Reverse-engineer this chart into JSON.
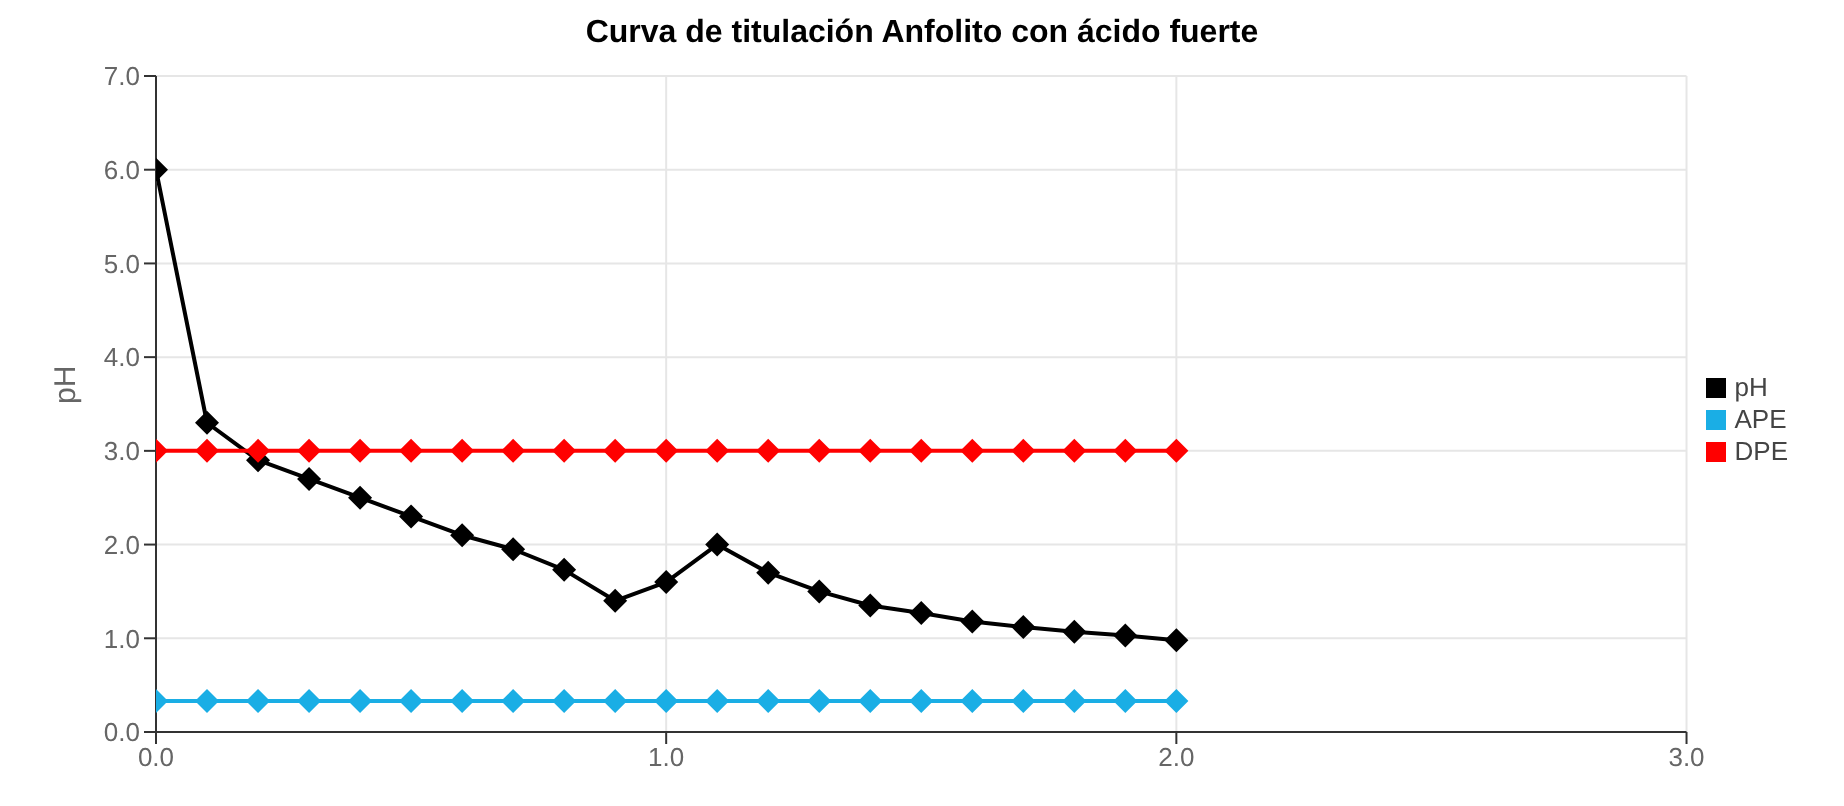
{
  "chart_data": {
    "type": "line",
    "title": "Curva de titulación Anfolito con ácido fuerte",
    "ylabel": "pH",
    "x": [
      0,
      0.1,
      0.2,
      0.3,
      0.4,
      0.5,
      0.6,
      0.7,
      0.8,
      0.9,
      1.0,
      1.1,
      1.2,
      1.3,
      1.4,
      1.5,
      1.6,
      1.7,
      1.8,
      1.9,
      2.0
    ],
    "series": [
      {
        "name": "pH",
        "color": "#000000",
        "values": [
          6.0,
          3.3,
          2.9,
          2.7,
          2.5,
          2.3,
          2.1,
          1.95,
          1.73,
          1.4,
          1.6,
          2.0,
          1.7,
          1.5,
          1.35,
          1.27,
          1.18,
          1.12,
          1.07,
          1.03,
          0.98
        ]
      },
      {
        "name": "APE",
        "color": "#1aaee5",
        "values": [
          0.33,
          0.33,
          0.33,
          0.33,
          0.33,
          0.33,
          0.33,
          0.33,
          0.33,
          0.33,
          0.33,
          0.33,
          0.33,
          0.33,
          0.33,
          0.33,
          0.33,
          0.33,
          0.33,
          0.33,
          0.33
        ]
      },
      {
        "name": "DPE",
        "color": "#ff0000",
        "values": [
          3.0,
          3.0,
          3.0,
          3.0,
          3.0,
          3.0,
          3.0,
          3.0,
          3.0,
          3.0,
          3.0,
          3.0,
          3.0,
          3.0,
          3.0,
          3.0,
          3.0,
          3.0,
          3.0,
          3.0,
          3.0
        ]
      }
    ],
    "xlim": [
      0,
      3
    ],
    "xticks": [
      {
        "value": 0,
        "label": "0.0"
      },
      {
        "value": 1,
        "label": "1.0"
      },
      {
        "value": 2,
        "label": "2.0"
      },
      {
        "value": 3,
        "label": "3.0"
      }
    ],
    "ylim": [
      0,
      7
    ],
    "yticks": [
      {
        "value": 0,
        "label": "0.0"
      },
      {
        "value": 1,
        "label": "1.0"
      },
      {
        "value": 2,
        "label": "2.0"
      },
      {
        "value": 3,
        "label": "3.0"
      },
      {
        "value": 4,
        "label": "4.0"
      },
      {
        "value": 5,
        "label": "5.0"
      },
      {
        "value": 6,
        "label": "6.0"
      },
      {
        "value": 7,
        "label": "7.0"
      }
    ],
    "grid": true,
    "legend": "right",
    "marker": "diamond",
    "line_style": "solid"
  }
}
